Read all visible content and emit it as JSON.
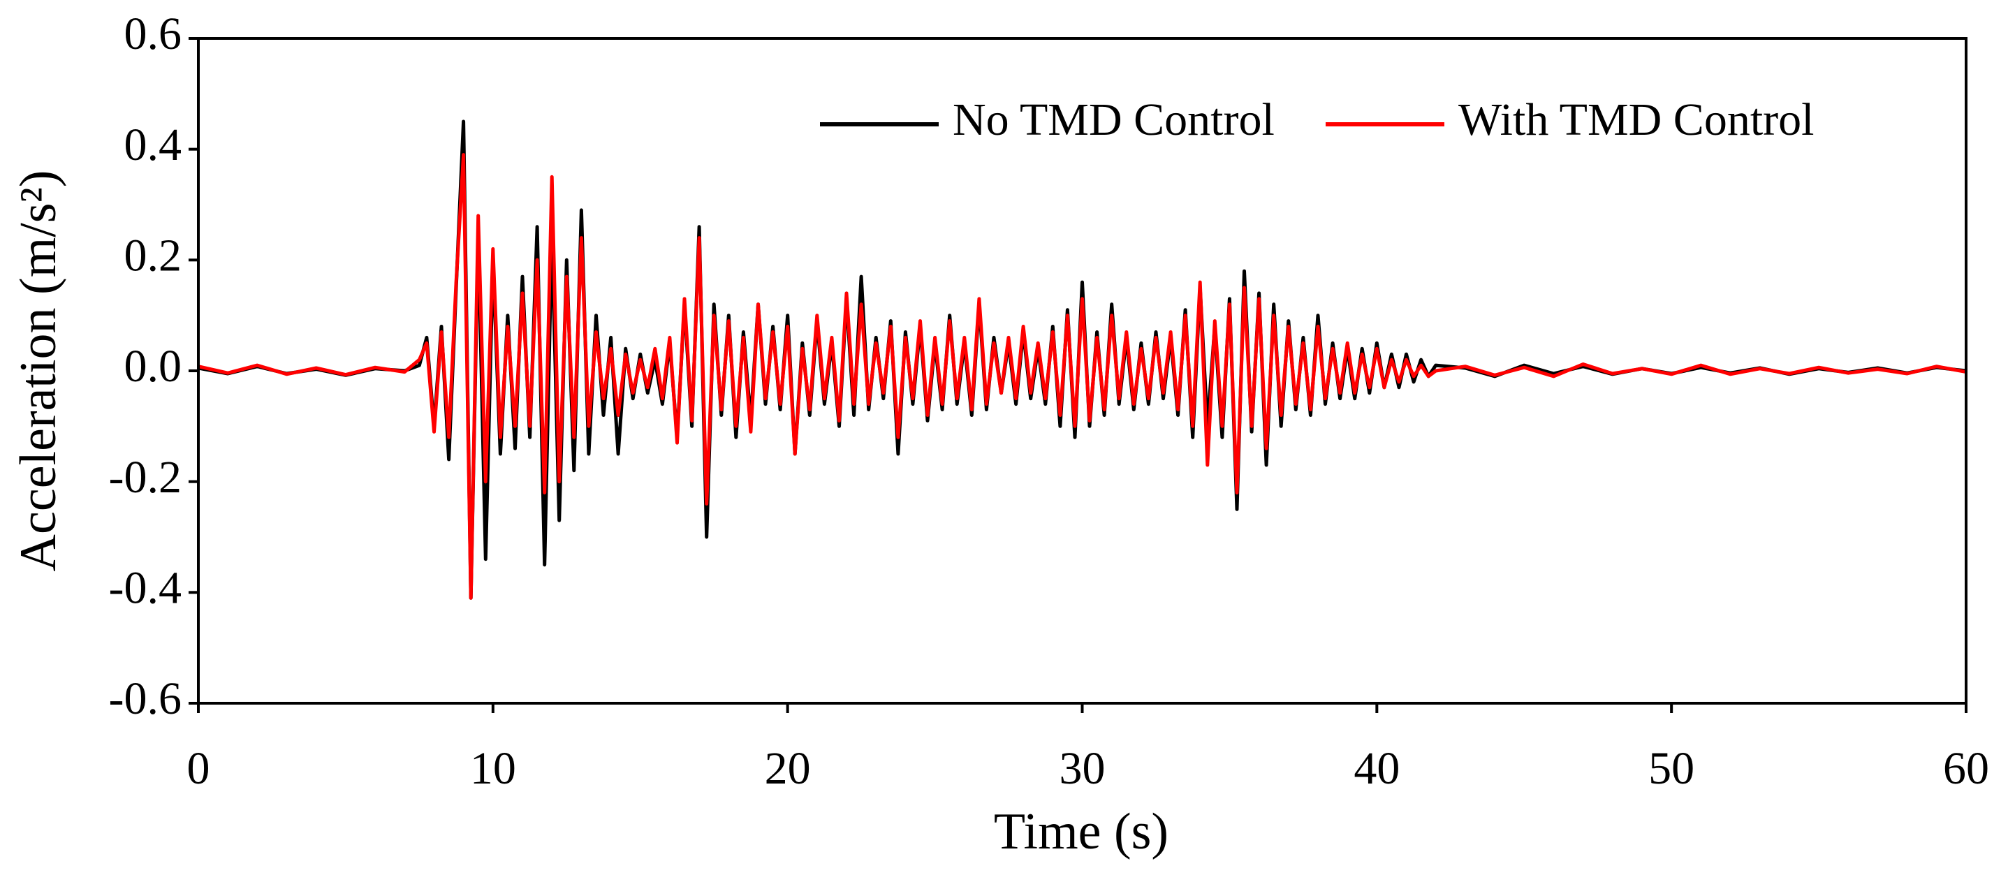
{
  "chart_data": {
    "type": "line",
    "xlabel": "Time (s)",
    "ylabel": "Acceleration (m/s²)",
    "xlim": [
      0,
      60
    ],
    "xticks": [
      0,
      10,
      20,
      30,
      40,
      50,
      60
    ],
    "ylim": [
      -0.6,
      0.6
    ],
    "yticks": [
      -0.6,
      -0.4,
      -0.2,
      {
        "value": 0,
        "label": "0.0"
      },
      0.2,
      0.4,
      0.6
    ],
    "legend": "upper right",
    "x": [
      0,
      1,
      2,
      3,
      4,
      5,
      6,
      7,
      7.5,
      7.75,
      8,
      8.25,
      8.5,
      8.75,
      9,
      9.25,
      9.5,
      9.75,
      10,
      10.25,
      10.5,
      10.75,
      11,
      11.25,
      11.5,
      11.75,
      12,
      12.25,
      12.5,
      12.75,
      13,
      13.25,
      13.5,
      13.75,
      14,
      14.25,
      14.5,
      14.75,
      15,
      15.25,
      15.5,
      15.75,
      16,
      16.25,
      16.5,
      16.75,
      17,
      17.25,
      17.5,
      17.75,
      18,
      18.25,
      18.5,
      18.75,
      19,
      19.25,
      19.5,
      19.75,
      20,
      20.25,
      20.5,
      20.75,
      21,
      21.25,
      21.5,
      21.75,
      22,
      22.25,
      22.5,
      22.75,
      23,
      23.25,
      23.5,
      23.75,
      24,
      24.25,
      24.5,
      24.75,
      25,
      25.25,
      25.5,
      25.75,
      26,
      26.25,
      26.5,
      26.75,
      27,
      27.25,
      27.5,
      27.75,
      28,
      28.25,
      28.5,
      28.75,
      29,
      29.25,
      29.5,
      29.75,
      30,
      30.25,
      30.5,
      30.75,
      31,
      31.25,
      31.5,
      31.75,
      32,
      32.25,
      32.5,
      32.75,
      33,
      33.25,
      33.5,
      33.75,
      34,
      34.25,
      34.5,
      34.75,
      35,
      35.25,
      35.5,
      35.75,
      36,
      36.25,
      36.5,
      36.75,
      37,
      37.25,
      37.5,
      37.75,
      38,
      38.25,
      38.5,
      38.75,
      39,
      39.25,
      39.5,
      39.75,
      40,
      40.25,
      40.5,
      40.75,
      41,
      41.25,
      41.5,
      41.75,
      42,
      43,
      44,
      45,
      46,
      47,
      48,
      49,
      50,
      51,
      52,
      53,
      54,
      55,
      56,
      57,
      58,
      59,
      60
    ],
    "series": [
      {
        "name": "No TMD Control",
        "color": "#000000",
        "values": [
          0.005,
          -0.005,
          0.008,
          -0.005,
          0.003,
          -0.008,
          0.004,
          0.0,
          0.01,
          0.06,
          -0.1,
          0.08,
          -0.16,
          0.15,
          0.45,
          -0.41,
          0.25,
          -0.34,
          0.2,
          -0.15,
          0.1,
          -0.14,
          0.17,
          -0.12,
          0.26,
          -0.35,
          0.25,
          -0.27,
          0.2,
          -0.18,
          0.29,
          -0.15,
          0.1,
          -0.08,
          0.06,
          -0.15,
          0.04,
          -0.05,
          0.03,
          -0.04,
          0.02,
          -0.06,
          0.05,
          -0.12,
          0.12,
          -0.1,
          0.26,
          -0.3,
          0.12,
          -0.08,
          0.1,
          -0.12,
          0.07,
          -0.09,
          0.12,
          -0.06,
          0.08,
          -0.07,
          0.1,
          -0.15,
          0.05,
          -0.08,
          0.09,
          -0.06,
          0.05,
          -0.1,
          0.13,
          -0.08,
          0.17,
          -0.07,
          0.06,
          -0.05,
          0.09,
          -0.15,
          0.07,
          -0.06,
          0.08,
          -0.09,
          0.05,
          -0.07,
          0.1,
          -0.06,
          0.05,
          -0.08,
          0.12,
          -0.07,
          0.06,
          -0.04,
          0.05,
          -0.06,
          0.07,
          -0.05,
          0.04,
          -0.06,
          0.08,
          -0.1,
          0.11,
          -0.12,
          0.16,
          -0.1,
          0.07,
          -0.08,
          0.12,
          -0.06,
          0.06,
          -0.07,
          0.05,
          -0.06,
          0.07,
          -0.05,
          0.06,
          -0.08,
          0.11,
          -0.12,
          0.15,
          -0.1,
          0.08,
          -0.12,
          0.13,
          -0.25,
          0.18,
          -0.11,
          0.14,
          -0.17,
          0.12,
          -0.1,
          0.09,
          -0.07,
          0.06,
          -0.08,
          0.1,
          -0.06,
          0.05,
          -0.05,
          0.04,
          -0.05,
          0.04,
          -0.04,
          0.05,
          -0.03,
          0.03,
          -0.03,
          0.03,
          -0.02,
          0.02,
          -0.01,
          0.01,
          0.005,
          -0.01,
          0.01,
          -0.005,
          0.008,
          -0.006,
          0.004,
          -0.005,
          0.006,
          -0.004,
          0.005,
          -0.006,
          0.004,
          -0.003,
          0.005,
          -0.004,
          0.006,
          0.0
        ]
      },
      {
        "name": "With TMD Control",
        "color": "#ff0000",
        "values": [
          0.008,
          -0.004,
          0.01,
          -0.006,
          0.005,
          -0.007,
          0.006,
          -0.002,
          0.02,
          0.05,
          -0.11,
          0.07,
          -0.12,
          0.16,
          0.39,
          -0.41,
          0.28,
          -0.2,
          0.22,
          -0.12,
          0.08,
          -0.1,
          0.14,
          -0.1,
          0.2,
          -0.22,
          0.35,
          -0.2,
          0.17,
          -0.12,
          0.24,
          -0.1,
          0.07,
          -0.05,
          0.04,
          -0.08,
          0.03,
          -0.04,
          0.02,
          -0.03,
          0.04,
          -0.05,
          0.06,
          -0.13,
          0.13,
          -0.09,
          0.24,
          -0.24,
          0.1,
          -0.07,
          0.09,
          -0.1,
          0.06,
          -0.11,
          0.12,
          -0.05,
          0.07,
          -0.06,
          0.08,
          -0.15,
          0.04,
          -0.07,
          0.1,
          -0.05,
          0.06,
          -0.09,
          0.14,
          -0.06,
          0.12,
          -0.06,
          0.05,
          -0.04,
          0.08,
          -0.12,
          0.06,
          -0.05,
          0.09,
          -0.08,
          0.06,
          -0.06,
          0.09,
          -0.05,
          0.06,
          -0.07,
          0.13,
          -0.06,
          0.05,
          -0.04,
          0.06,
          -0.05,
          0.08,
          -0.04,
          0.05,
          -0.05,
          0.07,
          -0.08,
          0.1,
          -0.1,
          0.13,
          -0.09,
          0.06,
          -0.07,
          0.1,
          -0.05,
          0.07,
          -0.06,
          0.04,
          -0.05,
          0.06,
          -0.04,
          0.07,
          -0.07,
          0.1,
          -0.1,
          0.16,
          -0.17,
          0.09,
          -0.1,
          0.12,
          -0.22,
          0.15,
          -0.1,
          0.13,
          -0.14,
          0.1,
          -0.08,
          0.08,
          -0.06,
          0.05,
          -0.07,
          0.08,
          -0.05,
          0.04,
          -0.04,
          0.05,
          -0.04,
          0.03,
          -0.03,
          0.04,
          -0.03,
          0.02,
          -0.02,
          0.02,
          -0.01,
          0.01,
          -0.01,
          0.0,
          0.008,
          -0.008,
          0.006,
          -0.01,
          0.012,
          -0.005,
          0.004,
          -0.006,
          0.01,
          -0.006,
          0.004,
          -0.005,
          0.006,
          -0.004,
          0.003,
          -0.005,
          0.008,
          -0.002
        ]
      }
    ]
  }
}
